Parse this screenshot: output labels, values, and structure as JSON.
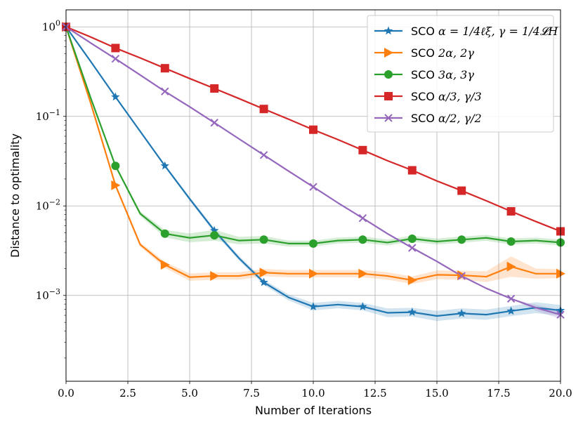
{
  "chart_data": {
    "type": "line",
    "title": "",
    "xlabel": "Number of Iterations",
    "ylabel": "Distance to optimality",
    "xscale": "linear",
    "yscale": "log",
    "xlim": [
      0,
      20
    ],
    "ylim": [
      0.00011,
      1.55
    ],
    "grid": true,
    "legend_position": "top-right",
    "x_ticks": [
      0,
      2.5,
      5,
      7.5,
      10,
      12.5,
      15,
      17.5,
      20
    ],
    "x_tick_labels": [
      "0.0",
      "2.5",
      "5.0",
      "7.5",
      "10.0",
      "12.5",
      "15.0",
      "17.5",
      "20.0"
    ],
    "y_ticks": [
      1,
      0.1,
      0.01,
      0.001
    ],
    "y_tick_labels": [
      {
        "base": "10",
        "exp": "0"
      },
      {
        "base": "10",
        "exp": "−1"
      },
      {
        "base": "10",
        "exp": "−2"
      },
      {
        "base": "10",
        "exp": "−3"
      }
    ],
    "x": [
      0,
      1,
      2,
      3,
      4,
      5,
      6,
      7,
      8,
      9,
      10,
      11,
      12,
      13,
      14,
      15,
      16,
      17,
      18,
      19,
      20
    ],
    "series": [
      {
        "name": "SCO α = 1/(4ℓ_ξ), γ = 1/(4𝓛_H)",
        "legend_prefix": "SCO",
        "legend_math": "α = 1/4ℓξ, γ = 1/4𝓛H",
        "color": "#1f77b4",
        "marker": "star",
        "values": [
          1.0,
          0.41,
          0.165,
          0.068,
          0.028,
          0.012,
          0.0053,
          0.0026,
          0.0014,
          0.00095,
          0.00075,
          0.00079,
          0.00075,
          0.00064,
          0.00065,
          0.00059,
          0.00063,
          0.00061,
          0.00067,
          0.00073,
          0.00068
        ],
        "band_rel": [
          0,
          0,
          0.03,
          0.03,
          0.04,
          0.05,
          0.06,
          0.06,
          0.07,
          0.08,
          0.1,
          0.1,
          0.1,
          0.12,
          0.12,
          0.14,
          0.14,
          0.14,
          0.14,
          0.15,
          0.15
        ]
      },
      {
        "name": "SCO 2α, 2γ",
        "legend_prefix": "SCO",
        "legend_math": "2α, 2γ",
        "color": "#ff7f0e",
        "marker": "triangle-right",
        "values": [
          1.0,
          0.14,
          0.017,
          0.0037,
          0.0022,
          0.0016,
          0.00165,
          0.00165,
          0.0018,
          0.00175,
          0.00175,
          0.00175,
          0.00175,
          0.00165,
          0.00148,
          0.0017,
          0.00168,
          0.00162,
          0.0021,
          0.00175,
          0.00175
        ],
        "band_rel": [
          0,
          0,
          0.04,
          0.06,
          0.08,
          0.1,
          0.1,
          0.1,
          0.1,
          0.1,
          0.1,
          0.1,
          0.1,
          0.1,
          0.1,
          0.12,
          0.12,
          0.15,
          0.3,
          0.14,
          0.12
        ]
      },
      {
        "name": "SCO 3α, 3γ",
        "legend_prefix": "SCO",
        "legend_math": "3α, 3γ",
        "color": "#2ca02c",
        "marker": "circle",
        "values": [
          1.0,
          0.16,
          0.028,
          0.0082,
          0.0049,
          0.0044,
          0.0047,
          0.0041,
          0.0042,
          0.0038,
          0.0038,
          0.0041,
          0.0042,
          0.0039,
          0.0043,
          0.004,
          0.0042,
          0.0044,
          0.004,
          0.0041,
          0.0039
        ],
        "band_rel": [
          0,
          0,
          0.04,
          0.06,
          0.1,
          0.12,
          0.15,
          0.1,
          0.1,
          0.08,
          0.08,
          0.08,
          0.08,
          0.08,
          0.08,
          0.08,
          0.08,
          0.08,
          0.08,
          0.08,
          0.08
        ]
      },
      {
        "name": "SCO α/3, γ/3",
        "legend_prefix": "SCO",
        "legend_math": "α/3, γ/3",
        "color": "#d62728",
        "marker": "square",
        "values": [
          1.0,
          0.77,
          0.58,
          0.45,
          0.345,
          0.265,
          0.205,
          0.158,
          0.121,
          0.093,
          0.071,
          0.055,
          0.042,
          0.032,
          0.025,
          0.019,
          0.0148,
          0.0114,
          0.0087,
          0.0067,
          0.0052
        ],
        "band_rel": [
          0,
          0,
          0,
          0,
          0,
          0,
          0,
          0,
          0,
          0,
          0,
          0,
          0,
          0,
          0,
          0,
          0,
          0,
          0,
          0,
          0
        ]
      },
      {
        "name": "SCO α/2, γ/2",
        "legend_prefix": "SCO",
        "legend_math": "α/2, γ/2",
        "color": "#9467bd",
        "marker": "x",
        "values": [
          1.0,
          0.66,
          0.44,
          0.29,
          0.19,
          0.128,
          0.085,
          0.056,
          0.037,
          0.0245,
          0.0163,
          0.0108,
          0.0073,
          0.0049,
          0.0034,
          0.0024,
          0.00165,
          0.0012,
          0.00092,
          0.00073,
          0.00061
        ],
        "band_rel": [
          0,
          0,
          0,
          0,
          0,
          0,
          0,
          0,
          0,
          0,
          0,
          0,
          0,
          0,
          0,
          0,
          0,
          0,
          0,
          0.08,
          0.12
        ]
      }
    ],
    "marker_every": 2
  }
}
